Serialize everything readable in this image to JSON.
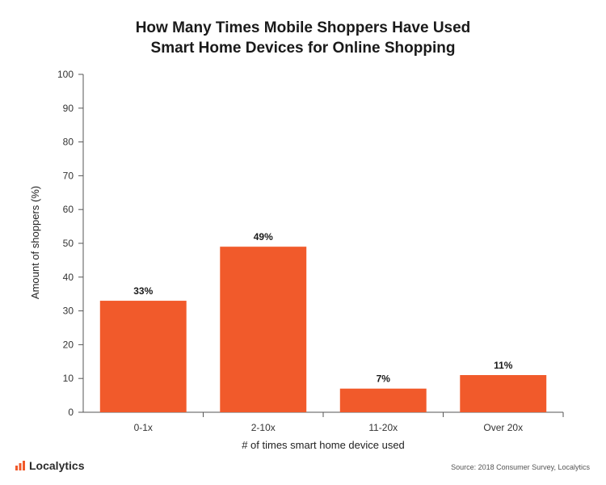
{
  "chart_data": {
    "type": "bar",
    "title_lines": [
      "How Many Times Mobile Shoppers Have Used",
      "Smart Home Devices for Online Shopping"
    ],
    "xlabel": "# of times smart home device used",
    "ylabel": "Amount of shoppers (%)",
    "categories": [
      "0-1x",
      "2-10x",
      "11-20x",
      "Over 20x"
    ],
    "values": [
      33,
      49,
      7,
      11
    ],
    "data_labels": [
      "33%",
      "49%",
      "7%",
      "11%"
    ],
    "ylim": [
      0,
      100
    ],
    "yticks": [
      0,
      10,
      20,
      30,
      40,
      50,
      60,
      70,
      80,
      90,
      100
    ],
    "grid": false,
    "bar_color": "#f15a2b"
  },
  "branding": {
    "name": "Localytics",
    "accent": "#f15a2b"
  },
  "source": "Source: 2018 Consumer Survey, Localytics"
}
